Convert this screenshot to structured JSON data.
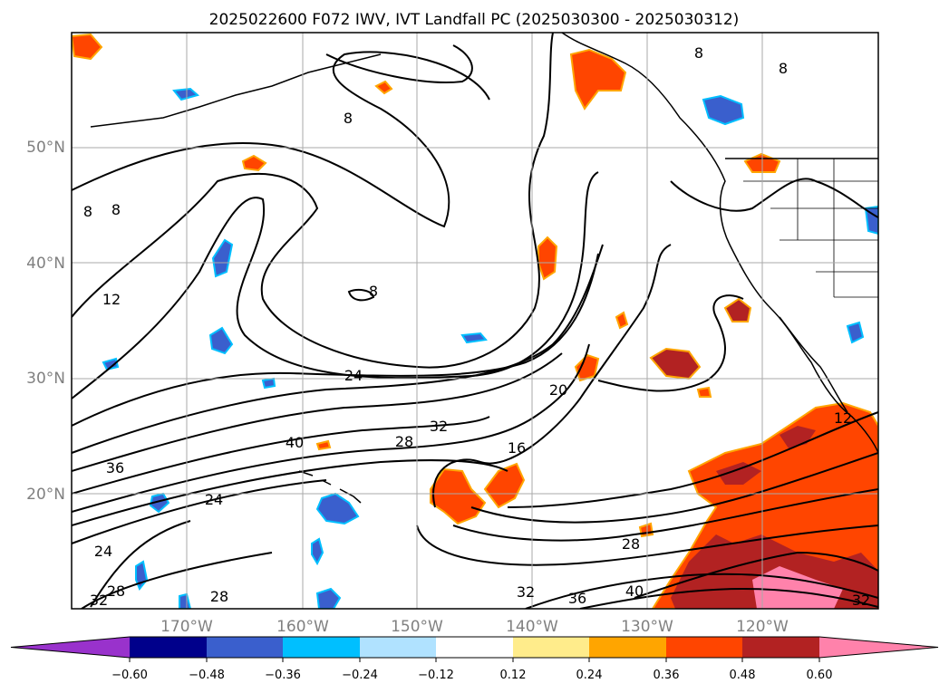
{
  "title": "2025022600 F072 IWV, IVT Landfall PC (2025030300 - 2025030312)",
  "latitudes": [
    "50°N",
    "40°N",
    "30°N",
    "20°N"
  ],
  "longitudes": [
    "170°W",
    "160°W",
    "150°W",
    "140°W",
    "130°W",
    "120°W"
  ],
  "colorbar": {
    "colors": [
      "#9932cc",
      "#00008b",
      "#3a5fcd",
      "#00bfff",
      "#b0e2ff",
      "#ffffff",
      "#ffec8b",
      "#ffa500",
      "#ff4500",
      "#b22222",
      "#ff82ab"
    ],
    "labels": [
      "−0.60",
      "−0.48",
      "−0.36",
      "−0.24",
      "−0.12",
      "0.12",
      "0.24",
      "0.36",
      "0.48",
      "0.60"
    ]
  },
  "contour_labels": [
    "8",
    "8",
    "8",
    "8",
    "8",
    "8",
    "12",
    "12",
    "16",
    "20",
    "24",
    "24",
    "24",
    "28",
    "28",
    "28",
    "28",
    "32",
    "32",
    "32",
    "32",
    "36",
    "36",
    "40",
    "40"
  ]
}
